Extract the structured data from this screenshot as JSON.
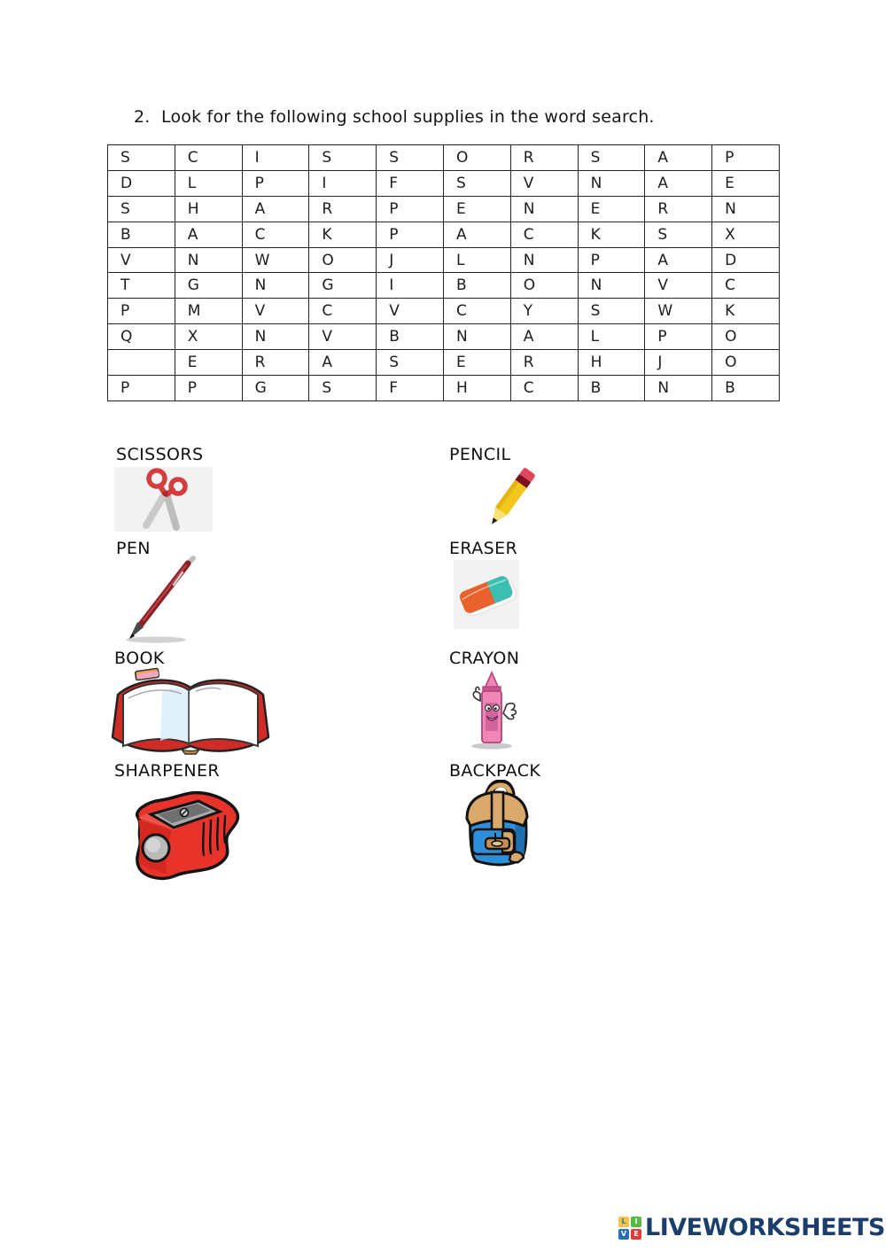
{
  "page": {
    "title": "2.  Look for the following school supplies in the word search."
  },
  "word_search": {
    "grid": [
      [
        "S",
        "C",
        "I",
        "S",
        "S",
        "O",
        "R",
        "S",
        "A",
        "P"
      ],
      [
        "D",
        "L",
        "P",
        "I",
        "F",
        "S",
        "V",
        "N",
        "A",
        "E"
      ],
      [
        "S",
        "H",
        "A",
        "R",
        "P",
        "E",
        "N",
        "E",
        "R",
        "N"
      ],
      [
        "B",
        "A",
        "C",
        "K",
        "P",
        "A",
        "C",
        "K",
        "S",
        "X"
      ],
      [
        "V",
        "N",
        "W",
        "O",
        "J",
        "L",
        "N",
        "P",
        "A",
        "D"
      ],
      [
        "T",
        "G",
        "N",
        "G",
        "I",
        "B",
        "O",
        "N",
        "V",
        "C"
      ],
      [
        "P",
        "M",
        "V",
        "C",
        "V",
        "C",
        "Y",
        "S",
        "W",
        "K"
      ],
      [
        "Q",
        "X",
        "N",
        "V",
        "B",
        "N",
        "A",
        "L",
        "P",
        "O"
      ],
      [
        "",
        "E",
        "R",
        "A",
        "S",
        "E",
        "R",
        "H",
        "J",
        "O"
      ],
      [
        "P",
        "P",
        "G",
        "S",
        "F",
        "H",
        "C",
        "B",
        "N",
        "B"
      ]
    ]
  },
  "words": {
    "left": [
      {
        "label": "SCISSORS",
        "icon": "scissors-icon"
      },
      {
        "label": "PEN",
        "icon": "pen-icon"
      },
      {
        "label": "BOOK",
        "icon": "book-icon"
      },
      {
        "label": "SHARPENER",
        "icon": "sharpener-icon"
      }
    ],
    "right": [
      {
        "label": "PENCIL",
        "icon": "pencil-icon"
      },
      {
        "label": "ERASER",
        "icon": "eraser-icon"
      },
      {
        "label": "CRAYON",
        "icon": "crayon-icon"
      },
      {
        "label": "BACKPACK",
        "icon": "backpack-icon"
      }
    ]
  },
  "footer": {
    "logo_tiles": [
      {
        "letter": "L",
        "bg": "#f6c445",
        "fg": "#2b6fb7"
      },
      {
        "letter": "I",
        "bg": "#58b947",
        "fg": "#ffffff"
      },
      {
        "letter": "V",
        "bg": "#2b6fb7",
        "fg": "#ffffff"
      },
      {
        "letter": "E",
        "bg": "#e23c38",
        "fg": "#ffffff"
      }
    ],
    "brand": "LIVEWORKSHEETS",
    "brand_color": "#1b3e6d"
  }
}
